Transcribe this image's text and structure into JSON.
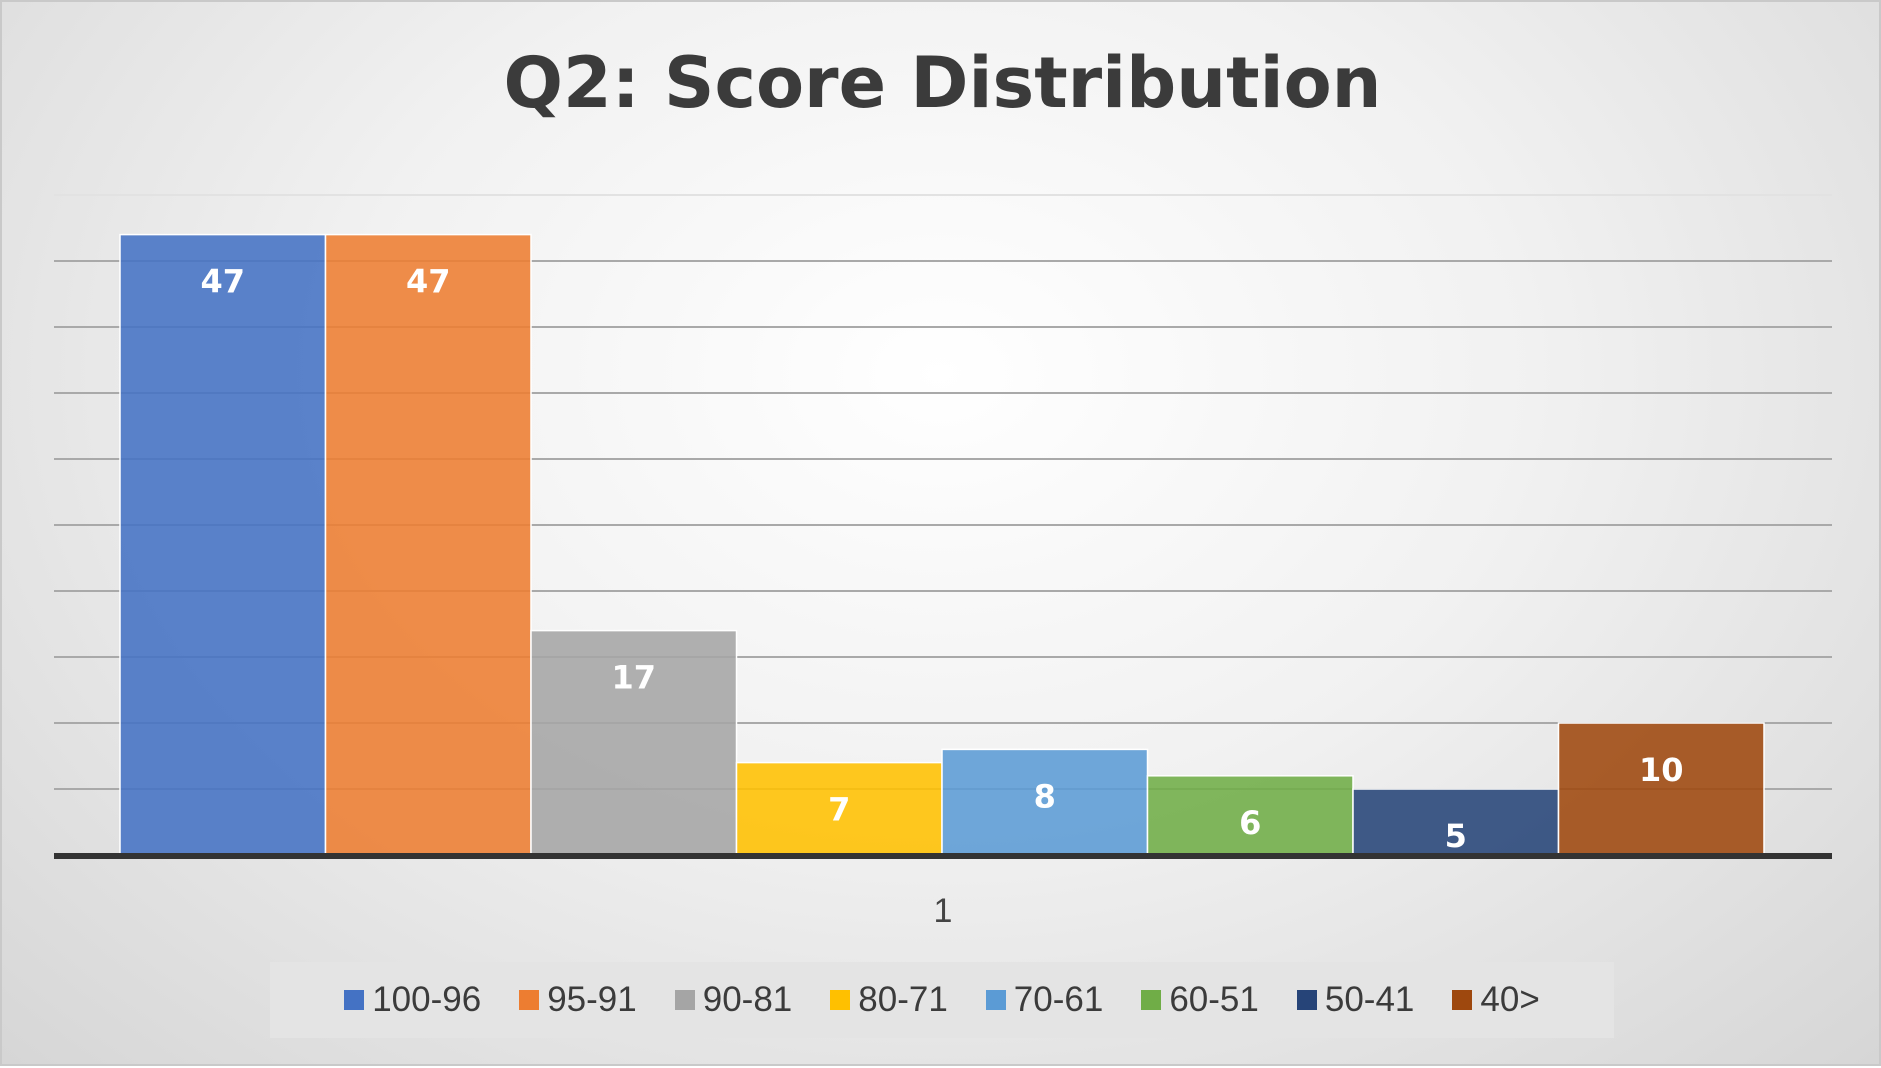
{
  "chart_data": {
    "type": "bar",
    "title": "Q2: Score Distribution",
    "categories": [
      "1"
    ],
    "ylim": [
      0,
      50
    ],
    "grid": true,
    "legend_position": "bottom",
    "data_labels": true,
    "series": [
      {
        "name": "100-96",
        "values": [
          47
        ],
        "color": "#4472C4"
      },
      {
        "name": "95-91",
        "values": [
          47
        ],
        "color": "#ED7D31"
      },
      {
        "name": "90-81",
        "values": [
          17
        ],
        "color": "#A5A5A5"
      },
      {
        "name": "80-71",
        "values": [
          7
        ],
        "color": "#FFC000"
      },
      {
        "name": "70-61",
        "values": [
          8
        ],
        "color": "#5B9BD5"
      },
      {
        "name": "60-51",
        "values": [
          6
        ],
        "color": "#70AD47"
      },
      {
        "name": "50-41",
        "values": [
          5
        ],
        "color": "#264478"
      },
      {
        "name": "40>",
        "values": [
          10
        ],
        "color": "#9E480E"
      }
    ]
  }
}
